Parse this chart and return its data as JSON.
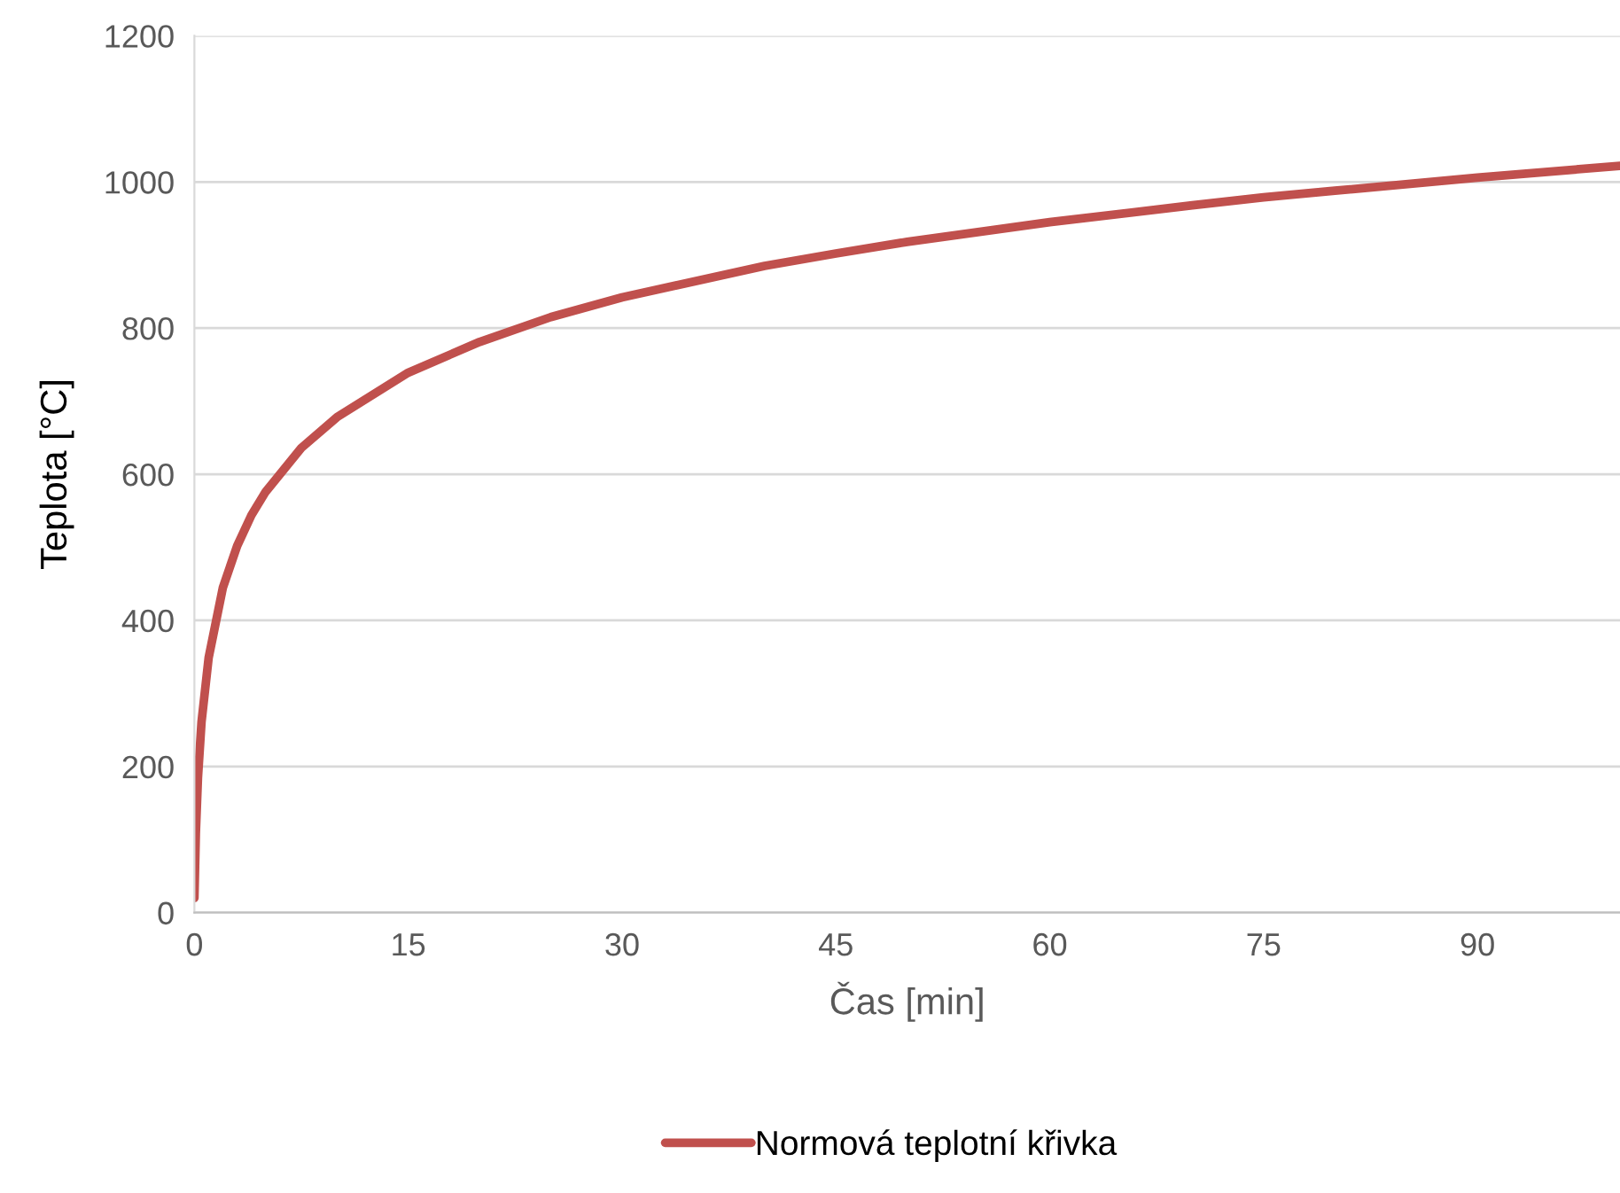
{
  "chart_data": {
    "type": "line",
    "xlabel": "Čas [min]",
    "ylabel": "Teplota [°C]",
    "series": [
      {
        "name": "Normová teplotní křivka",
        "color": "#c0504d",
        "x": [
          0,
          0.1,
          0.25,
          0.5,
          1,
          2,
          3,
          4,
          5,
          7.5,
          10,
          15,
          20,
          25,
          30,
          40,
          45,
          50,
          60,
          70,
          75,
          80,
          90,
          100
        ],
        "values": [
          20,
          108,
          185,
          261,
          349,
          445,
          502,
          544,
          576,
          636,
          678,
          739,
          781,
          815,
          842,
          885,
          902,
          918,
          945,
          968,
          979,
          988,
          1006,
          1022
        ]
      }
    ],
    "xlim": [
      0,
      100
    ],
    "xticks": [
      0,
      15,
      30,
      45,
      60,
      75,
      90
    ],
    "ylim": [
      0,
      1200
    ],
    "yticks": [
      0,
      200,
      400,
      600,
      800,
      1000,
      1200
    ],
    "grid": "y",
    "legend": "bottom",
    "marker": "none",
    "line_style": "solid"
  }
}
